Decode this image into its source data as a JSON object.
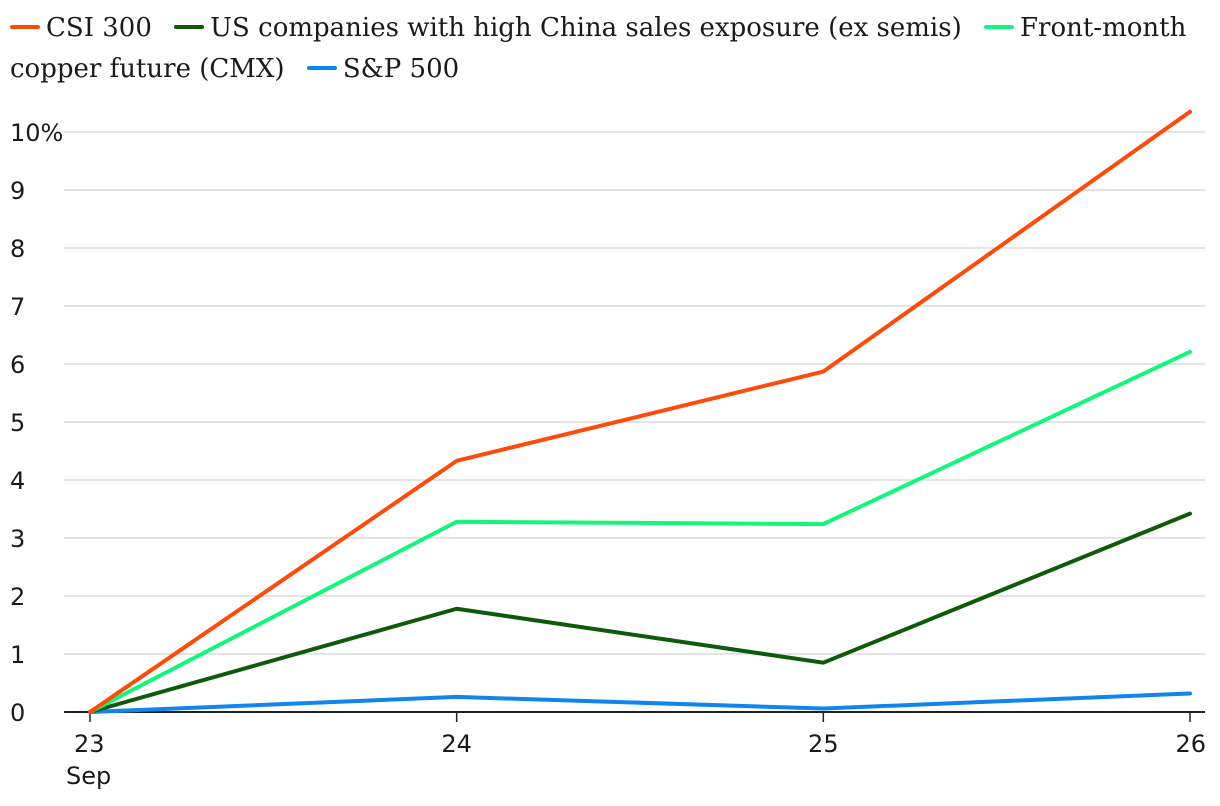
{
  "chart_data": {
    "type": "line",
    "x": [
      "23",
      "24",
      "25",
      "26"
    ],
    "x_sublabel": "Sep",
    "series": [
      {
        "name": "CSI 300",
        "color": "#fc4b0a",
        "values": [
          0,
          4.33,
          5.87,
          10.35
        ]
      },
      {
        "name": "US companies with high China sales exposure (ex semis)",
        "color": "#0e5a0a",
        "values": [
          0,
          1.78,
          0.85,
          3.42
        ]
      },
      {
        "name": "Front-month copper future (CMX)",
        "color": "#14f57c",
        "values": [
          0,
          3.28,
          3.24,
          6.21
        ]
      },
      {
        "name": "S&P 500",
        "color": "#1185ef",
        "values": [
          0,
          0.26,
          0.06,
          0.32
        ]
      }
    ],
    "yticks": [
      "0",
      "1",
      "2",
      "3",
      "4",
      "5",
      "6",
      "7",
      "8",
      "9",
      "10%"
    ],
    "ylim": [
      0,
      10
    ],
    "grid": true,
    "legend_position": "top"
  }
}
